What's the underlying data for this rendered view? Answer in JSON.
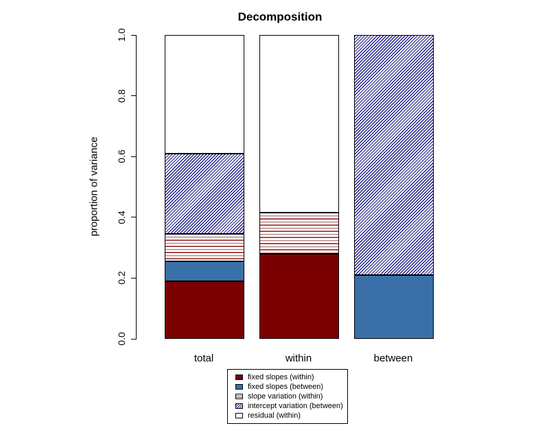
{
  "title": "Decomposition",
  "y_axis": {
    "label": "proportion of variance",
    "ticks": [
      "0.0",
      "0.2",
      "0.4",
      "0.6",
      "0.8",
      "1.0"
    ]
  },
  "x_axis": {
    "categories": [
      "total",
      "within",
      "between"
    ]
  },
  "colors": {
    "fixed_slopes_within": "#7b0000",
    "fixed_slopes_between": "#3a70a8",
    "slope_variation_line": "#8b1a1a",
    "intercept_variation_line": "#23238c",
    "residual": "#ffffff",
    "border": "#000000"
  },
  "chart_data": {
    "type": "bar",
    "stacked": true,
    "title": "Decomposition",
    "xlabel": "",
    "ylabel": "proportion of variance",
    "ylim": [
      0,
      1
    ],
    "grid": false,
    "legend_position": "bottom-center-outside",
    "categories": [
      "total",
      "within",
      "between"
    ],
    "series": [
      {
        "name": "fixed slopes (within)",
        "pattern": "solid",
        "color": "#7b0000",
        "values": [
          0.19,
          0.28,
          0
        ]
      },
      {
        "name": "fixed slopes (between)",
        "pattern": "solid",
        "color": "#3a70a8",
        "values": [
          0.065,
          0,
          0.21
        ]
      },
      {
        "name": "slope variation (within)",
        "pattern": "hstripes",
        "color": "#8b1a1a",
        "values": [
          0.09,
          0.135,
          0
        ]
      },
      {
        "name": "intercept variation (between)",
        "pattern": "diag",
        "color": "#23238c",
        "values": [
          0.265,
          0,
          0.79
        ]
      },
      {
        "name": "residual (within)",
        "pattern": "none",
        "color": "#ffffff",
        "values": [
          0.39,
          0.585,
          0
        ]
      }
    ]
  },
  "legend": {
    "entries": [
      "fixed slopes (within)",
      "fixed slopes (between)",
      "slope variation (within)",
      "intercept variation (between)",
      "residual (within)"
    ]
  }
}
